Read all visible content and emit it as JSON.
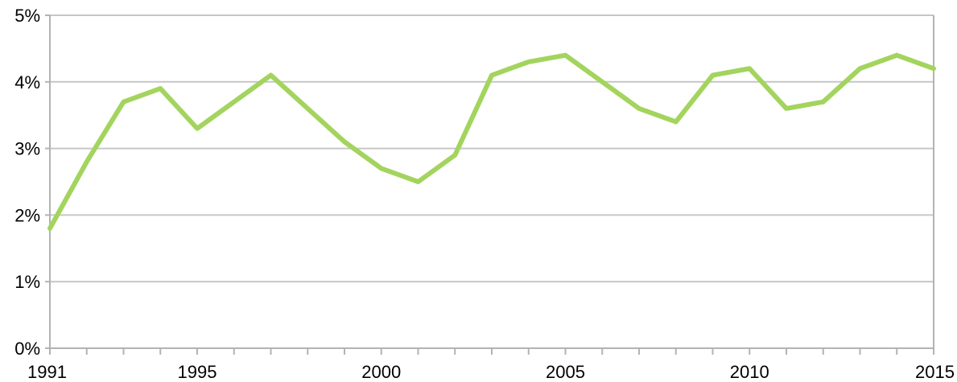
{
  "chart_data": {
    "type": "line",
    "title": "",
    "xlabel": "",
    "ylabel": "",
    "x": [
      1991,
      1992,
      1993,
      1994,
      1995,
      1996,
      1997,
      1998,
      1999,
      2000,
      2001,
      2002,
      2003,
      2004,
      2005,
      2006,
      2007,
      2008,
      2009,
      2010,
      2011,
      2012,
      2013,
      2014,
      2015
    ],
    "series": [
      {
        "values": [
          1.8,
          2.8,
          3.7,
          3.9,
          3.3,
          3.7,
          4.1,
          3.6,
          3.1,
          2.7,
          2.5,
          2.9,
          4.1,
          4.3,
          4.4,
          4.0,
          3.6,
          3.4,
          4.1,
          4.2,
          3.6,
          3.7,
          4.2,
          4.4,
          4.2
        ],
        "color": "#a3d45e"
      }
    ],
    "xlim": [
      1991,
      2015
    ],
    "ylim": [
      0,
      5
    ],
    "x_tick_labels": [
      "1991",
      "1995",
      "2000",
      "2005",
      "2010",
      "2015"
    ],
    "x_tick_values": [
      1991,
      1995,
      2000,
      2005,
      2010,
      2015
    ],
    "y_tick_labels": [
      "0%",
      "1%",
      "2%",
      "3%",
      "4%",
      "5%"
    ],
    "y_tick_values": [
      0,
      1,
      2,
      3,
      4,
      5
    ],
    "grid": true,
    "legend": "none"
  }
}
